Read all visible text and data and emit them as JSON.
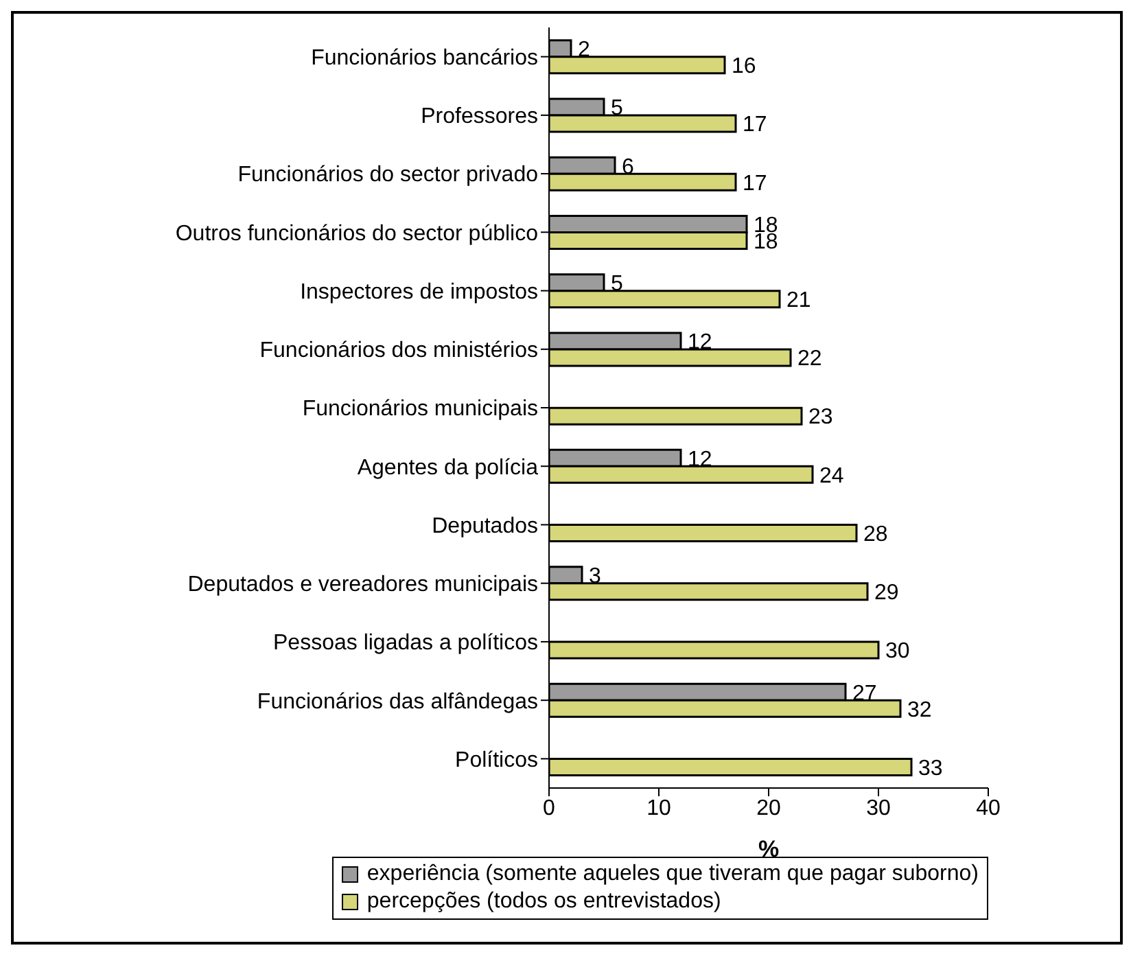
{
  "chart_data": {
    "type": "bar",
    "orientation": "horizontal",
    "xlabel": "%",
    "categories": [
      "Funcionários bancários",
      "Professores",
      "Funcionários do sector privado",
      "Outros funcionários do sector público",
      "Inspectores de impostos",
      "Funcionários dos ministérios",
      "Funcionários municipais",
      "Agentes da polícia",
      "Deputados",
      "Deputados e vereadores  municipais",
      "Pessoas ligadas a políticos",
      "Funcionários das alfândegas",
      "Políticos"
    ],
    "series": [
      {
        "name": "experiência (somente aqueles que tiveram que pagar suborno)",
        "color": "#9c9c9c",
        "values": [
          2,
          5,
          6,
          18,
          5,
          12,
          null,
          12,
          null,
          3,
          null,
          27,
          null
        ]
      },
      {
        "name": "percepções (todos os entrevistados)",
        "color": "#d6d67a",
        "values": [
          16,
          17,
          17,
          18,
          21,
          22,
          23,
          24,
          28,
          29,
          30,
          32,
          33
        ]
      }
    ],
    "xlim": [
      0,
      40
    ],
    "xticks": [
      0,
      10,
      20,
      30,
      40
    ],
    "grid": false,
    "legend": "bottom",
    "data_labels": true
  }
}
